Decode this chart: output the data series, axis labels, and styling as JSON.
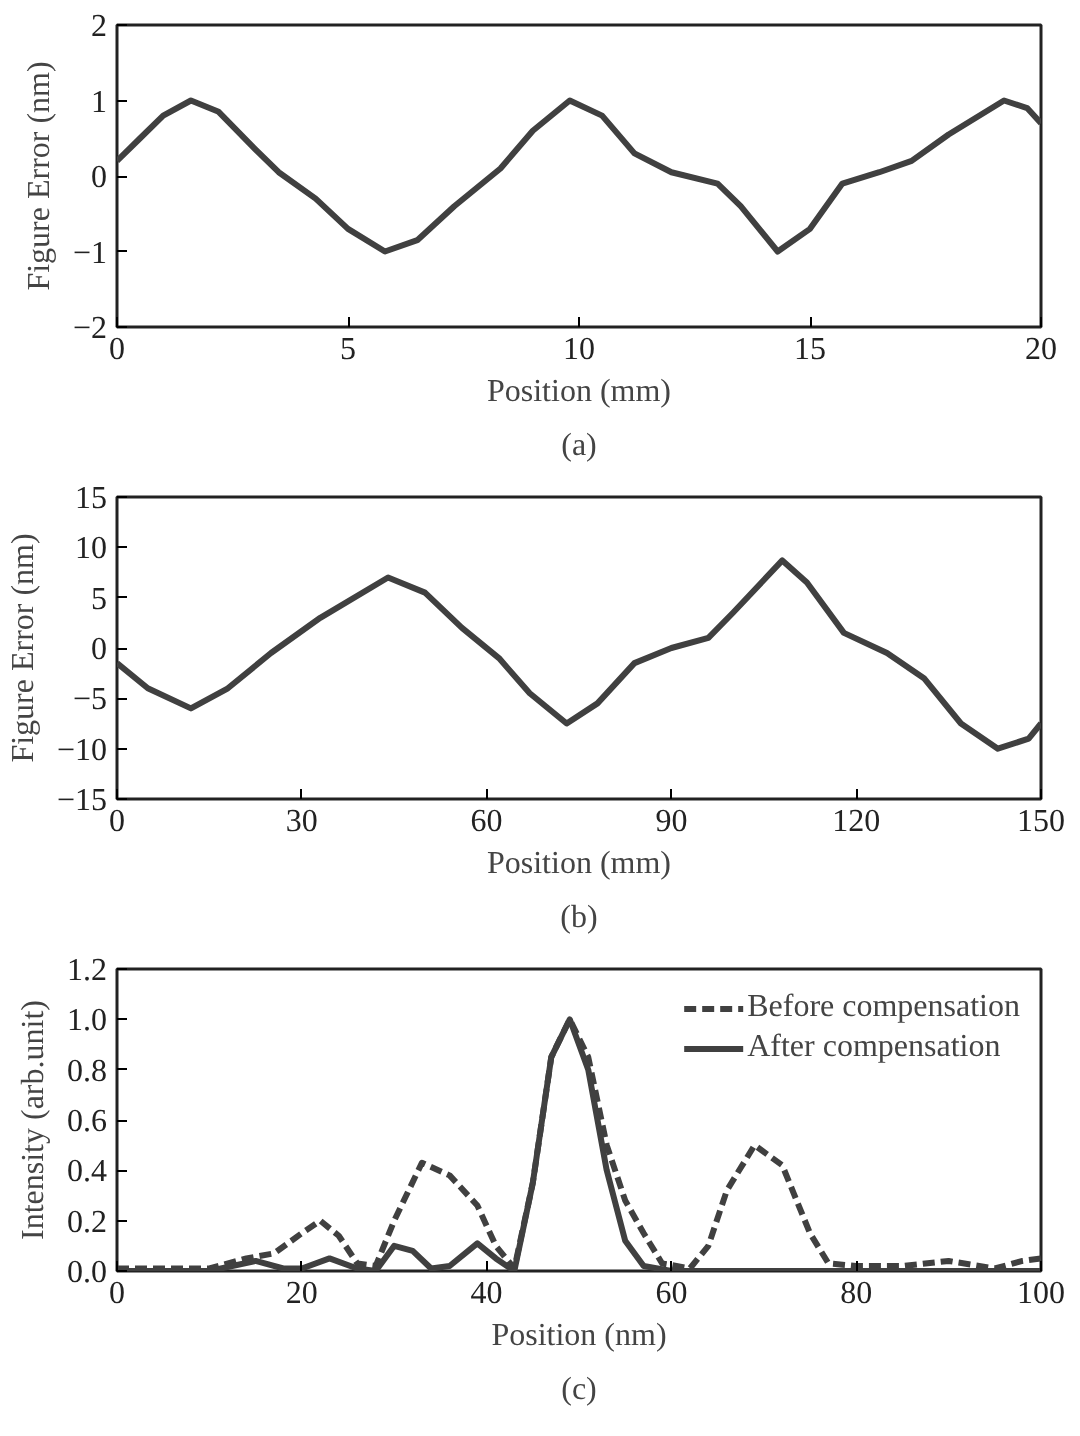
{
  "chart_data": [
    {
      "type": "line",
      "xlabel": "Position (mm)",
      "ylabel": "Figure Error (nm)",
      "annotations": [
        "(a)"
      ],
      "xlim": [
        0,
        20
      ],
      "ylim": [
        -2,
        2
      ],
      "xticks": [
        0,
        5,
        10,
        15,
        20
      ],
      "yticks": [
        -2,
        -1,
        0,
        1,
        2
      ],
      "grid": false,
      "legend": false,
      "line_style": "solid",
      "series": [
        {
          "color": "#404040",
          "x": [
            0,
            0.5,
            1,
            1.6,
            2.2,
            3,
            3.5,
            4.3,
            5,
            5.8,
            6.5,
            7.3,
            8.3,
            9,
            9.8,
            10.5,
            11.2,
            12,
            13,
            13.5,
            14.3,
            15,
            15.7,
            16.5,
            17.2,
            18,
            19.2,
            19.7,
            20
          ],
          "values": [
            0.2,
            0.5,
            0.8,
            1.0,
            0.85,
            0.35,
            0.05,
            -0.3,
            -0.7,
            -1.0,
            -0.85,
            -0.4,
            0.1,
            0.6,
            1.0,
            0.8,
            0.3,
            0.05,
            -0.1,
            -0.4,
            -1.0,
            -0.7,
            -0.1,
            0.05,
            0.2,
            0.55,
            1.0,
            0.9,
            0.7
          ]
        }
      ]
    },
    {
      "type": "line",
      "xlabel": "Position (mm)",
      "ylabel": "Figure Error (nm)",
      "annotations": [
        "(b)"
      ],
      "xlim": [
        0,
        150
      ],
      "ylim": [
        -15,
        15
      ],
      "xticks": [
        0,
        30,
        60,
        90,
        120,
        150
      ],
      "yticks": [
        -15,
        -10,
        -5,
        0,
        5,
        10,
        15
      ],
      "grid": false,
      "legend": false,
      "line_style": "solid",
      "series": [
        {
          "color": "#404040",
          "x": [
            0,
            5,
            12,
            18,
            25,
            33,
            44,
            50,
            56,
            62,
            67,
            73,
            78,
            84,
            90,
            96,
            100,
            108,
            112,
            118,
            125,
            131,
            137,
            143,
            148,
            150
          ],
          "values": [
            -1.5,
            -4,
            -6,
            -4,
            -0.5,
            3,
            7,
            5.5,
            2,
            -1,
            -4.5,
            -7.5,
            -5.5,
            -1.5,
            0,
            1,
            3.5,
            8.7,
            6.5,
            1.5,
            -0.5,
            -3,
            -7.5,
            -10,
            -9,
            -7.5
          ]
        }
      ]
    },
    {
      "type": "line",
      "xlabel": "Position (nm)",
      "ylabel": "Intensity (arb.unit)",
      "annotations": [
        "(c)"
      ],
      "xlim": [
        0,
        100
      ],
      "ylim": [
        0,
        1.2
      ],
      "xticks": [
        0,
        20,
        40,
        60,
        80,
        100
      ],
      "yticks": [
        {
          "value": 0,
          "label": "0.0"
        },
        {
          "value": 0.2,
          "label": "0.2"
        },
        {
          "value": 0.4,
          "label": "0.4"
        },
        {
          "value": 0.6,
          "label": "0.6"
        },
        {
          "value": 0.8,
          "label": "0.8"
        },
        {
          "value": 1.0,
          "label": "1.0"
        },
        {
          "value": 1.2,
          "label": "1.2"
        }
      ],
      "grid": false,
      "legend": "top right",
      "series": [
        {
          "name": "Before compensation",
          "color": "#404040",
          "line_style": "dashed",
          "x": [
            0,
            5,
            10,
            14,
            17,
            20,
            22,
            24,
            26,
            28,
            30,
            33,
            36,
            39,
            41,
            43,
            45,
            47,
            49,
            51,
            53,
            55,
            57,
            59,
            62,
            64,
            66,
            69,
            72,
            75,
            77,
            80,
            85,
            90,
            95,
            98,
            100
          ],
          "values": [
            0.01,
            0.01,
            0.01,
            0.05,
            0.07,
            0.15,
            0.2,
            0.14,
            0.03,
            0.02,
            0.2,
            0.43,
            0.38,
            0.26,
            0.1,
            0.01,
            0.35,
            0.85,
            1.0,
            0.85,
            0.5,
            0.28,
            0.15,
            0.03,
            0.01,
            0.1,
            0.32,
            0.5,
            0.42,
            0.15,
            0.03,
            0.02,
            0.02,
            0.04,
            0.01,
            0.04,
            0.05
          ]
        },
        {
          "name": "After compensation",
          "color": "#404040",
          "line_style": "solid",
          "x": [
            0,
            10,
            15,
            18,
            20,
            23,
            26,
            28,
            30,
            32,
            34,
            36,
            39,
            41,
            43,
            45,
            47,
            49,
            51,
            53,
            55,
            57,
            60,
            70,
            80,
            100
          ],
          "values": [
            0,
            0,
            0.04,
            0.01,
            0.01,
            0.05,
            0.01,
            0,
            0.1,
            0.08,
            0.01,
            0.02,
            0.11,
            0.05,
            0,
            0.35,
            0.85,
            1.0,
            0.8,
            0.4,
            0.12,
            0.02,
            0,
            0,
            0,
            0
          ]
        }
      ]
    }
  ]
}
